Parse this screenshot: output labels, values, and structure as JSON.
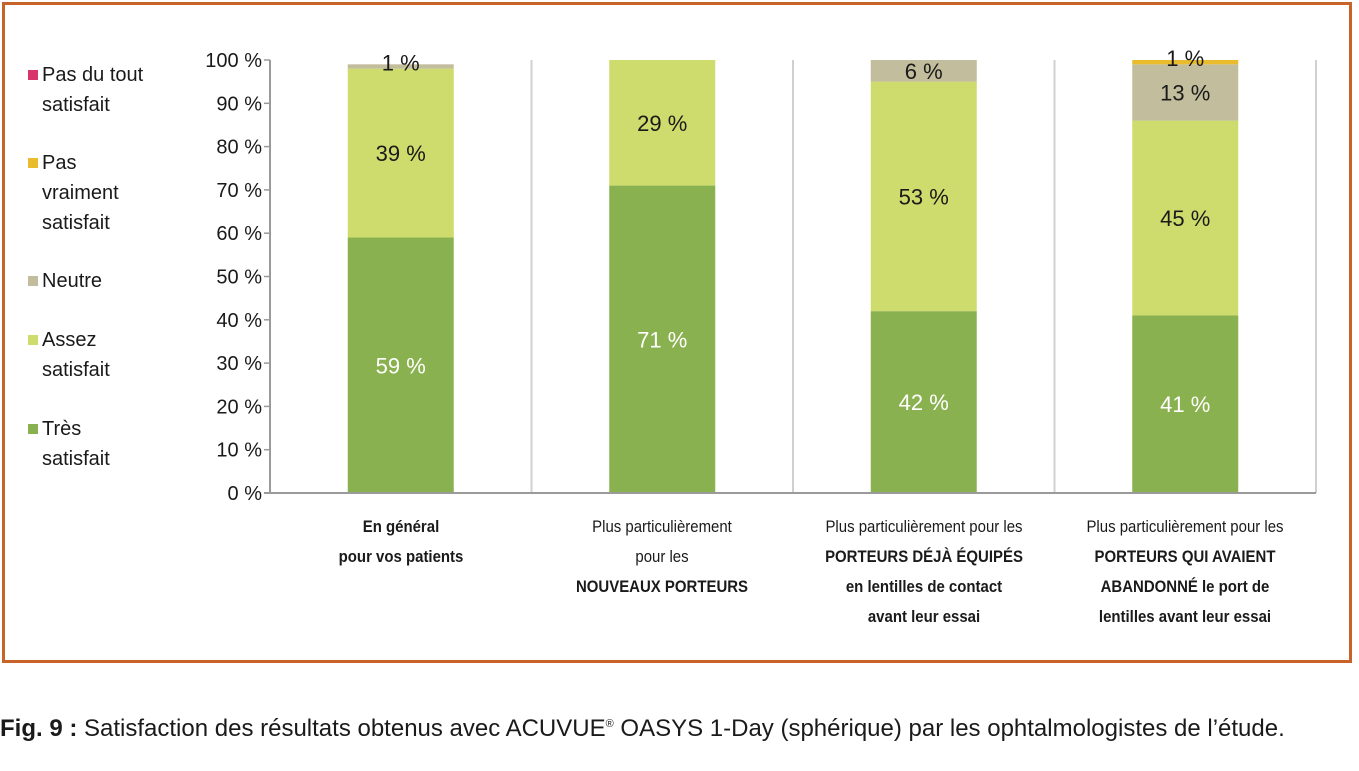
{
  "chart_data": {
    "type": "bar",
    "stacked": true,
    "categories": [
      "En général pour vos patients",
      "Plus particulièrement pour les NOUVEAUX PORTEURS",
      "Plus particulièrement pour les PORTEURS DÉJÀ ÉQUIPÉS en lentilles de contact avant leur essai",
      "Plus particulièrement pour les PORTEURS QUI AVAIENT ABANDONNÉ le port de lentilles avant leur essai"
    ],
    "series": [
      {
        "name": "Très satisfait",
        "color": "#8ab150",
        "values": [
          59,
          71,
          42,
          41
        ],
        "labels": [
          "59 %",
          "71 %",
          "42 %",
          "41 %"
        ]
      },
      {
        "name": "Assez satisfait",
        "color": "#cddc6c",
        "values": [
          39,
          29,
          53,
          45
        ],
        "labels": [
          "39 %",
          "29 %",
          "53 %",
          "45 %"
        ]
      },
      {
        "name": "Neutre",
        "color": "#c2bd9c",
        "values": [
          1,
          0,
          6,
          13
        ],
        "labels": [
          "1 %",
          "",
          "6 %",
          "13 %"
        ]
      },
      {
        "name": "Pas vraiment satisfait",
        "color": "#e8bc2c",
        "values": [
          0,
          0,
          0,
          1
        ],
        "labels": [
          "",
          "",
          "",
          "1 %"
        ]
      },
      {
        "name": "Pas du tout satisfait",
        "color": "#d8336a",
        "values": [
          0,
          0,
          0,
          0
        ],
        "labels": [
          "",
          "",
          "",
          ""
        ]
      }
    ],
    "y_ticks": [
      "0 %",
      "10 %",
      "20 %",
      "30 %",
      "40 %",
      "50 %",
      "60 %",
      "70 %",
      "80 %",
      "90 %",
      "100 %"
    ],
    "ylim": [
      0,
      100
    ],
    "grid": "vertical",
    "legend_position": "left"
  },
  "legend": [
    {
      "label": "Pas du tout\nsatisfait",
      "color": "#d8336a"
    },
    {
      "label": "Pas\nvraiment\nsatisfait",
      "color": "#e8bc2c"
    },
    {
      "label": "Neutre",
      "color": "#c2bd9c"
    },
    {
      "label": "Assez\nsatisfait",
      "color": "#cddc6c"
    },
    {
      "label": "Très\nsatisfait",
      "color": "#8ab150"
    }
  ],
  "category_labels": [
    [
      {
        "t": "En général",
        "b": true
      },
      {
        "t": "pour vos patients",
        "b": true
      }
    ],
    [
      {
        "t": "Plus particulièrement",
        "b": false
      },
      {
        "t": "pour les",
        "b": false
      },
      {
        "t": "NOUVEAUX PORTEURS",
        "b": true
      }
    ],
    [
      {
        "t": "Plus particulièrement pour les",
        "b": false
      },
      {
        "t": "PORTEURS DÉJÀ ÉQUIPÉS",
        "b": true
      },
      {
        "t": "en lentilles de contact",
        "b": true
      },
      {
        "t": "avant leur essai",
        "b": true
      }
    ],
    [
      {
        "t": "Plus particulièrement pour les",
        "b": false
      },
      {
        "t": "PORTEURS QUI AVAIENT",
        "b": true
      },
      {
        "t": "ABANDONNÉ le port de",
        "b": true
      },
      {
        "t": "lentilles avant leur essai",
        "b": true
      }
    ]
  ],
  "caption": {
    "fig": "Fig. 9 :",
    "text_before": " Satisfaction des résultats obtenus avec ACUVUE",
    "sup": "®",
    "text_after": " OASYS 1-Day (sphérique) par les ophtalmologistes de l’étude."
  },
  "colors": {
    "frame": "#c8642a",
    "grid": "#d0d0d0",
    "axis": "#9a9a9a"
  }
}
